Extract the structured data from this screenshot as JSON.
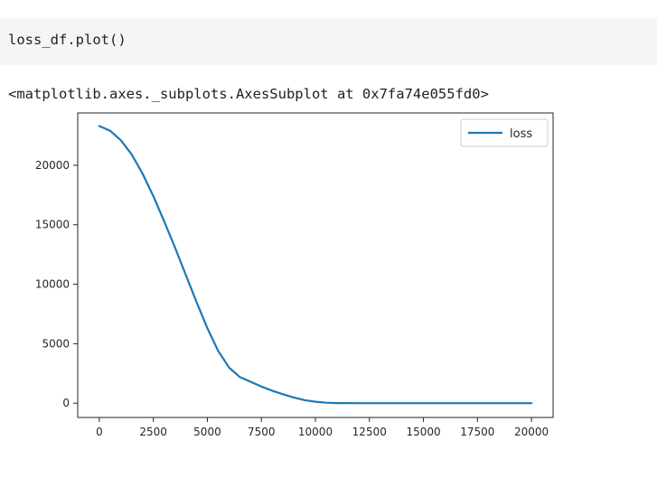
{
  "cell": {
    "code": "loss_df.plot()",
    "output": "<matplotlib.axes._subplots.AxesSubplot at 0x7fa74e055fd0>"
  },
  "chart_data": {
    "type": "line",
    "title": "",
    "xlabel": "",
    "ylabel": "",
    "xlim": [
      -1000,
      21000
    ],
    "ylim": [
      -1200,
      24400
    ],
    "xticks": [
      0,
      2500,
      5000,
      7500,
      10000,
      12500,
      15000,
      17500,
      20000
    ],
    "xtick_labels": [
      "0",
      "2500",
      "5000",
      "7500",
      "10000",
      "12500",
      "15000",
      "17500",
      "20000"
    ],
    "yticks": [
      0,
      5000,
      10000,
      15000,
      20000
    ],
    "ytick_labels": [
      "0",
      "5000",
      "10000",
      "15000",
      "20000"
    ],
    "grid": false,
    "legend": {
      "position": "upper-right",
      "entries": [
        "loss"
      ]
    },
    "series": [
      {
        "name": "loss",
        "color": "#1f77b4",
        "x": [
          0,
          500,
          1000,
          1500,
          2000,
          2500,
          3000,
          3500,
          4000,
          4500,
          5000,
          5500,
          6000,
          6500,
          7000,
          7500,
          8000,
          8500,
          9000,
          9500,
          10000,
          10500,
          11000,
          12000,
          14000,
          16000,
          18000,
          20000
        ],
        "y": [
          23300,
          22900,
          22100,
          20900,
          19300,
          17400,
          15300,
          13100,
          10800,
          8500,
          6300,
          4400,
          3000,
          2200,
          1800,
          1400,
          1050,
          750,
          480,
          260,
          120,
          40,
          10,
          3,
          2,
          1,
          1,
          1
        ]
      }
    ]
  }
}
